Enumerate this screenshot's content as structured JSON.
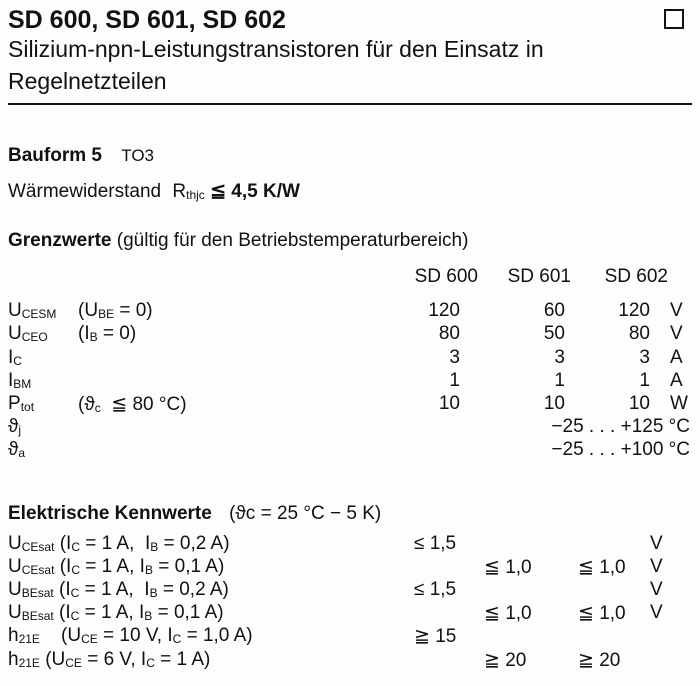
{
  "header": {
    "title": "SD 600, SD 601, SD 602",
    "subtitle_line1": "Silizium-npn-Leistungstransistoren für den Einsatz in",
    "subtitle_line2": "Regelnetzteilen",
    "checkbox_icon": "empty-square-icon"
  },
  "bauform": {
    "label": "Bauform 5",
    "value": "TO3"
  },
  "thermal": {
    "label": "Wärmewiderstand",
    "symbol": "R",
    "symbol_sub": "thjc",
    "value": "≦ 4,5 K/W"
  },
  "limits": {
    "heading": "Grenzwerte",
    "heading_note": "(gültig für den Betriebstemperaturbereich)",
    "columns": [
      "SD 600",
      "SD 601",
      "SD 602"
    ],
    "rows": [
      {
        "sym": "U",
        "sub": "CESM",
        "cond": "(U",
        "cond_sub": "BE",
        "cond_rest": " = 0)",
        "v": [
          "120",
          "60",
          "120"
        ],
        "unit": "V"
      },
      {
        "sym": "U",
        "sub": "CEO",
        "cond": "(I",
        "cond_sub": "B",
        "cond_rest": " = 0)",
        "v": [
          "80",
          "50",
          "80"
        ],
        "unit": "V"
      },
      {
        "sym": "I",
        "sub": "C",
        "cond": "",
        "cond_sub": "",
        "cond_rest": "",
        "v": [
          "3",
          "3",
          "3"
        ],
        "unit": "A"
      },
      {
        "sym": "I",
        "sub": "BM",
        "cond": "",
        "cond_sub": "",
        "cond_rest": "",
        "v": [
          "1",
          "1",
          "1"
        ],
        "unit": "A"
      },
      {
        "sym": "P",
        "sub": "tot",
        "cond": "(ϑ",
        "cond_sub": "c",
        "cond_rest": "  ≦ 80 °C)",
        "v": [
          "10",
          "10",
          "10"
        ],
        "unit": "W"
      }
    ],
    "temp_rows": [
      {
        "sym": "ϑ",
        "sub": "j",
        "range": "−25 . . . +125 °C"
      },
      {
        "sym": "ϑ",
        "sub": "a",
        "range": "−25 . . . +100 °C"
      }
    ]
  },
  "electrical": {
    "heading": "Elektrische Kennwerte",
    "heading_note": "(ϑc = 25 °C − 5 K)",
    "rows": [
      {
        "sym": "U",
        "sub": "CEsat",
        "cond": " (I",
        "c1": "C",
        "cond2": " = 1 A,  I",
        "c2": "B",
        "cond3": " = 0,2 A)",
        "v1": "≤ 1,5",
        "v2": "",
        "v3": "",
        "unit": "V"
      },
      {
        "sym": "U",
        "sub": "CEsat",
        "cond": " (I",
        "c1": "C",
        "cond2": " = 1 A, I",
        "c2": "B",
        "cond3": " = 0,1 A)",
        "v1": "",
        "v2": "≦ 1,0",
        "v3": "≦ 1,0",
        "unit": "V"
      },
      {
        "sym": "U",
        "sub": "BEsat",
        "cond": " (I",
        "c1": "C",
        "cond2": " = 1 A,  I",
        "c2": "B",
        "cond3": " = 0,2 A)",
        "v1": "≤ 1,5",
        "v2": "",
        "v3": "",
        "unit": "V"
      },
      {
        "sym": "U",
        "sub": "BEsat",
        "cond": " (I",
        "c1": "C",
        "cond2": " = 1 A, I",
        "c2": "B",
        "cond3": " = 0,1 A)",
        "v1": "",
        "v2": "≦ 1,0",
        "v3": "≦ 1,0",
        "unit": "V"
      },
      {
        "sym": "h",
        "sub": "21E",
        "cond": "    (U",
        "c1": "CE",
        "cond2": " = 10 V, I",
        "c2": "C",
        "cond3": " = 1,0 A)",
        "v1": "≧ 15",
        "v2": "",
        "v3": "",
        "unit": ""
      },
      {
        "sym": "h",
        "sub": "21E",
        "cond": " (U",
        "c1": "CE",
        "cond2": " = 6 V, I",
        "c2": "C",
        "cond3": " = 1 A)",
        "v1": "",
        "v2": "≧ 20",
        "v3": "≧ 20",
        "unit": ""
      }
    ]
  }
}
